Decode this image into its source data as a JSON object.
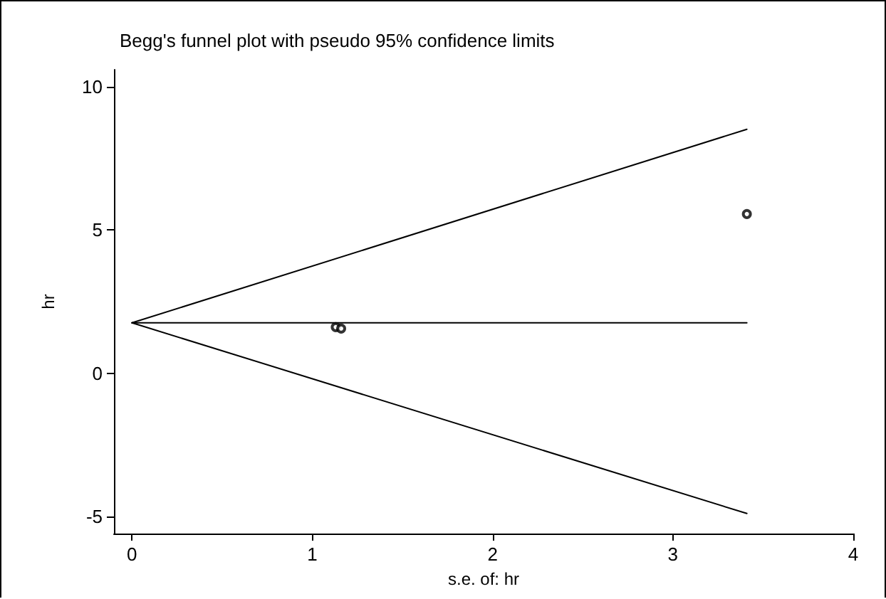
{
  "chart_data": {
    "type": "scatter",
    "title": "Begg's funnel plot with pseudo 95% confidence limits",
    "xlabel": "s.e. of: hr",
    "ylabel": "hr",
    "xlim": [
      -0.1,
      4
    ],
    "xticks": [
      0,
      1,
      2,
      3,
      4
    ],
    "ylim": [
      -5.6,
      10.6
    ],
    "yticks": [
      -5,
      0,
      5,
      10
    ],
    "grid": false,
    "series": [
      {
        "type": "line",
        "color": "#000000",
        "marker": "none",
        "x": [
          0,
          3.41
        ],
        "values": [
          1.76,
          8.52
        ]
      },
      {
        "type": "line",
        "color": "#000000",
        "marker": "none",
        "x": [
          0,
          3.41
        ],
        "values": [
          1.76,
          1.76
        ]
      },
      {
        "type": "line",
        "color": "#000000",
        "marker": "none",
        "x": [
          0,
          3.41
        ],
        "values": [
          1.76,
          -4.9
        ]
      },
      {
        "color": "#000000",
        "marker": "circle",
        "x": [
          1.13,
          1.16,
          3.41
        ],
        "values": [
          1.61,
          1.56,
          5.56
        ]
      }
    ]
  }
}
